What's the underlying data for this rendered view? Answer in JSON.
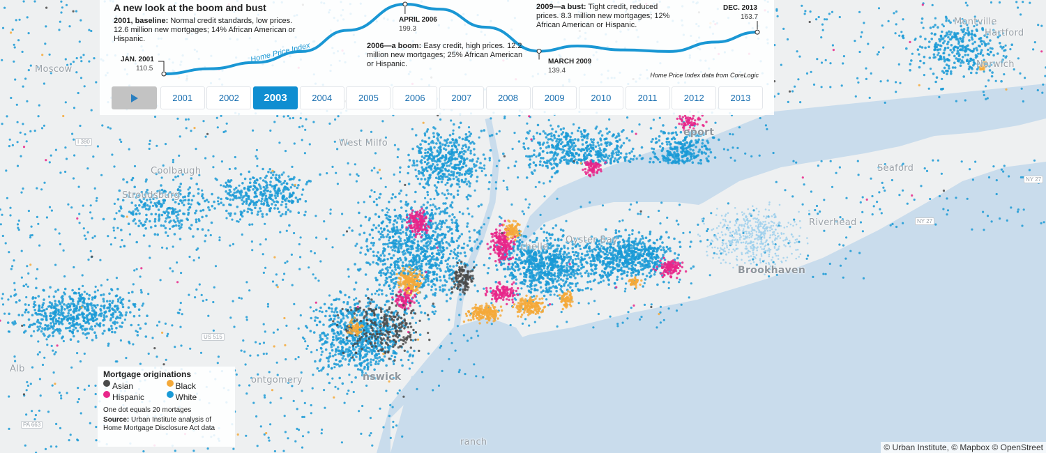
{
  "colors": {
    "asian": "#4a4a4a",
    "black": "#f4a93a",
    "hispanic": "#e8268a",
    "white": "#1a9ad6",
    "water": "#c9dcec",
    "land": "#eef0f1",
    "hpi_line": "#1a97d4"
  },
  "chart": {
    "title": "A new look at the boom and bust",
    "series_label": "Home Price Index",
    "credit": "Home Price Index data from CoreLogic",
    "annotations": [
      {
        "heading": "2001, baseline:",
        "text": "Normal credit standards, low prices. 12.6 million new mortgages; 14% African American or Hispanic."
      },
      {
        "heading": "2006—a boom:",
        "text": "Easy credit, high prices. 12.2 million new mortgages; 25%  African American or Hispanic."
      },
      {
        "heading": "2009—a bust:",
        "text": "Tight credit, reduced prices. 8.3 million new mortgages; 12% African American or Hispanic."
      }
    ],
    "points": [
      {
        "label": "JAN. 2001",
        "value": "110.5"
      },
      {
        "label": "APRIL 2006",
        "value": "199.3"
      },
      {
        "label": "MARCH 2009",
        "value": "139.4"
      },
      {
        "label": "DEC. 2013",
        "value": "163.7"
      }
    ]
  },
  "chart_data": {
    "type": "line",
    "title": "A new look at the boom and bust",
    "series": [
      {
        "name": "Home Price Index",
        "x": [
          "2001-01",
          "2002-01",
          "2003-01",
          "2004-01",
          "2005-01",
          "2006-04",
          "2007-01",
          "2008-01",
          "2009-03",
          "2010-01",
          "2011-01",
          "2012-01",
          "2013-01",
          "2013-12"
        ],
        "values": [
          110.5,
          117,
          125,
          139,
          166,
          199.3,
          193,
          170,
          139.4,
          146,
          141,
          139,
          151,
          163.7
        ]
      }
    ]
  },
  "controls": {
    "play_icon": "play-icon",
    "years": [
      "2001",
      "2002",
      "2003",
      "2004",
      "2005",
      "2006",
      "2007",
      "2008",
      "2009",
      "2010",
      "2011",
      "2012",
      "2013"
    ],
    "selected_year": "2003"
  },
  "legend": {
    "title": "Mortgage originations",
    "items": [
      {
        "label": "Asian",
        "color": "#4a4a4a"
      },
      {
        "label": "Black",
        "color": "#f4a93a"
      },
      {
        "label": "Hispanic",
        "color": "#e8268a"
      },
      {
        "label": "White",
        "color": "#1a9ad6"
      }
    ],
    "note": "One dot equals 20 mortages",
    "source_heading": "Source:",
    "source_text": "Urban Institute analysis of Home Mortgage Disclosure Act data"
  },
  "map_labels": {
    "moscow": "Moscow",
    "west_milford": "West Milfo",
    "coolbaugh": "Coolbaugh",
    "stroudsburg": "Stroudsburg",
    "new_rochelle": "chelle",
    "oyster_bay": "Oyster Bay",
    "bridgeport": "eport",
    "montville": "Montville",
    "hartford": "Hartford",
    "seaford": "Seaford",
    "riverhead": "Riverhead",
    "brookhaven": "Brookhaven",
    "montgomery": "ontgomery",
    "new_brunswick": "nswick",
    "albany": "Alb",
    "long_branch": "ranch",
    "norwich": "Norwich",
    "i380": "I 380",
    "us_515": "US 515",
    "ny27a": "NY 27",
    "ny27b": "NY 27",
    "pa663": "PA 663"
  },
  "attribution": "© Urban Institute, © Mapbox © OpenStreet"
}
